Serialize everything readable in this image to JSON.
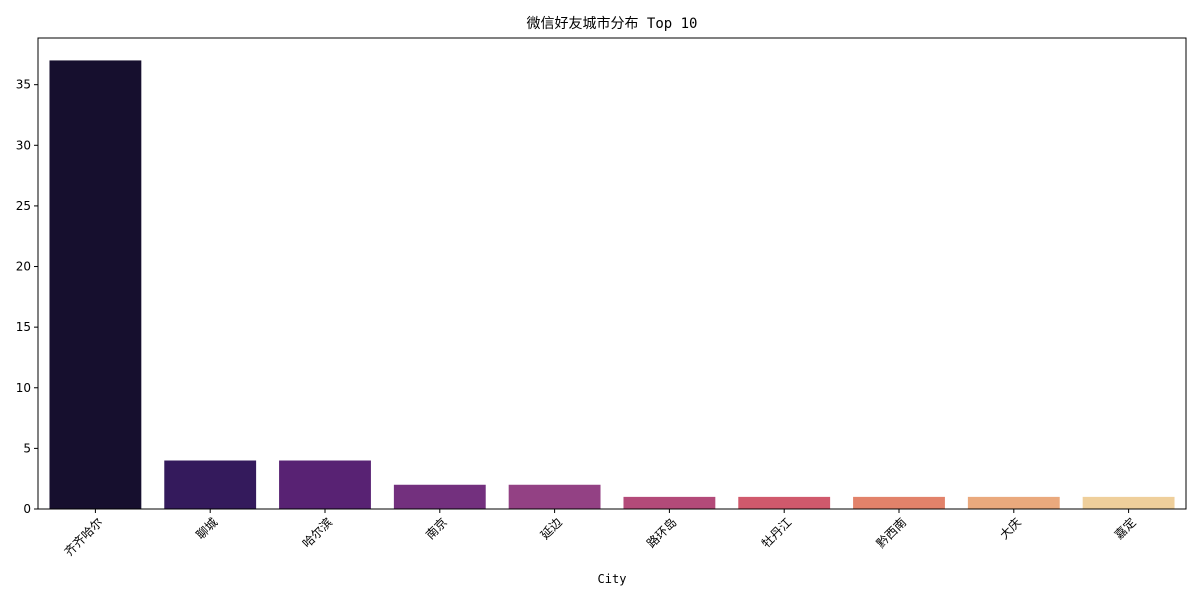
{
  "chart_data": {
    "type": "bar",
    "title": "微信好友城市分布 Top 10",
    "xlabel": "City",
    "ylabel": "",
    "categories": [
      "齐齐哈尔",
      "聊城",
      "哈尔滨",
      "南京",
      "延边",
      "路环岛",
      "牡丹江",
      "黔西南",
      "大庆",
      "嘉定"
    ],
    "values": [
      37,
      4,
      4,
      2,
      2,
      1,
      1,
      1,
      1,
      1
    ],
    "colors": [
      "#160f2e",
      "#341a5c",
      "#582273",
      "#73307e",
      "#934184",
      "#b34a79",
      "#d0596c",
      "#e2826a",
      "#eaa97d",
      "#efcf9b"
    ],
    "ylim": [
      0,
      38.85
    ],
    "yticks": [
      0,
      5,
      10,
      15,
      20,
      25,
      30,
      35
    ],
    "grid": false,
    "legend": "none"
  }
}
